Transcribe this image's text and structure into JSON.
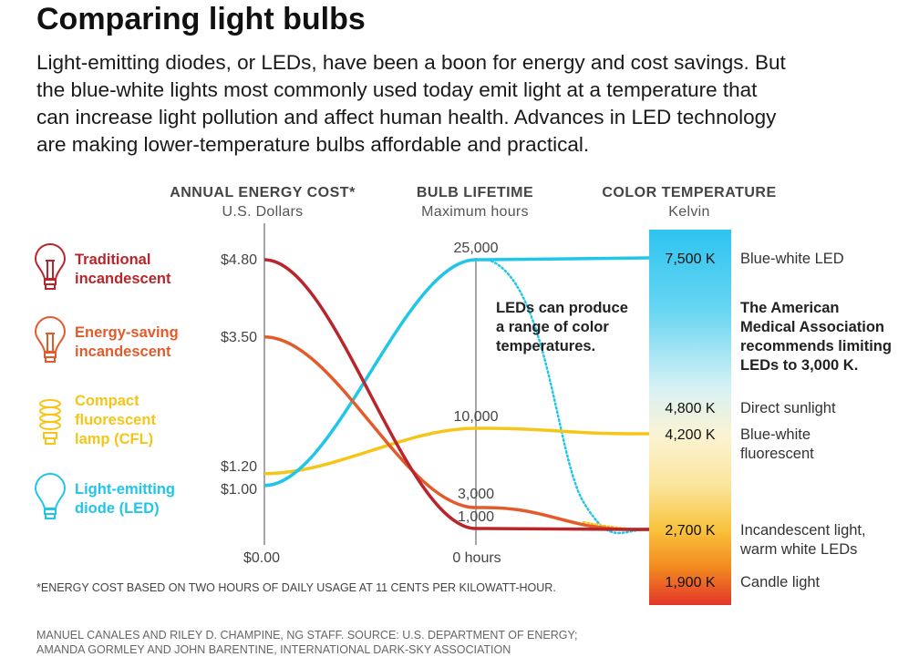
{
  "title": "Comparing light bulbs",
  "intro": [
    "Light-emitting diodes, or LEDs, have been a boon for energy and cost savings. But",
    "the blue-white lights most commonly used today emit light at a temperature that",
    "can increase light pollution and affect human health. Advances in LED technology",
    "are making lower-temperature bulbs affordable and practical."
  ],
  "chart_data": {
    "type": "line",
    "axes": {
      "cost": {
        "header": "ANNUAL ENERGY COST*",
        "sub": "U.S. Dollars",
        "zero_label": "$0.00"
      },
      "lifetime": {
        "header": "BULB LIFETIME",
        "sub": "Maximum hours",
        "zero_label": "0 hours"
      },
      "temperature": {
        "header": "COLOR TEMPERATURE",
        "sub": "Kelvin",
        "range": [
          1900,
          7500
        ]
      }
    },
    "series": [
      {
        "name": "Traditional incandescent",
        "lines": [
          "Traditional",
          "incandescent"
        ],
        "color": "#b8262c",
        "cost": 4.8,
        "cost_label": "$4.80",
        "lifetime": 1000,
        "lifetime_label": "1,000",
        "kelvin": 2700
      },
      {
        "name": "Energy-saving incandescent",
        "lines": [
          "Energy-saving",
          "incandescent"
        ],
        "color": "#e35b2a",
        "cost": 3.5,
        "cost_label": "$3.50",
        "lifetime": 3000,
        "lifetime_label": "3,000",
        "kelvin": 2700
      },
      {
        "name": "Compact fluorescent lamp (CFL)",
        "lines": [
          "Compact",
          "fluorescent",
          "lamp (CFL)"
        ],
        "color": "#f5c518",
        "cost": 1.2,
        "cost_label": "$1.20",
        "lifetime": 10000,
        "lifetime_label": "10,000",
        "kelvin": 4200
      },
      {
        "name": "Light-emitting diode (LED)",
        "lines": [
          "Light-emitting",
          "diode (LED)"
        ],
        "color": "#20c6e8",
        "cost": 1.0,
        "cost_label": "$1.00",
        "lifetime": 25000,
        "lifetime_label": "25,000",
        "kelvin": 7500
      }
    ],
    "temperature_marks": [
      {
        "kelvin": 7500,
        "label": "7,500 K",
        "desc": [
          "Blue-white LED"
        ]
      },
      {
        "kelvin": 4800,
        "label": "4,800 K",
        "desc": [
          "Direct sunlight"
        ]
      },
      {
        "kelvin": 4200,
        "label": "4,200 K",
        "desc": [
          "Blue-white",
          "fluorescent"
        ]
      },
      {
        "kelvin": 2700,
        "label": "2,700 K",
        "desc": [
          "Incandescent light,",
          "warm white LEDs"
        ]
      },
      {
        "kelvin": 1900,
        "label": "1,900 K",
        "desc": [
          "Candle light"
        ]
      }
    ],
    "annotations": {
      "led_range": [
        "LEDs can produce",
        "a range of color",
        "temperatures."
      ],
      "ama": [
        "The American",
        "Medical Association",
        "recommends limiting",
        "LEDs to 3,000 K."
      ]
    }
  },
  "footnote": "*ENERGY COST BASED ON TWO HOURS OF DAILY USAGE AT 11 CENTS PER KILOWATT-HOUR.",
  "credits": [
    "MANUEL CANALES AND RILEY D. CHAMPINE, NG STAFF. SOURCE: U.S. DEPARTMENT OF ENERGY;",
    "AMANDA GORMLEY AND JOHN BARENTINE, INTERNATIONAL DARK-SKY ASSOCIATION"
  ]
}
